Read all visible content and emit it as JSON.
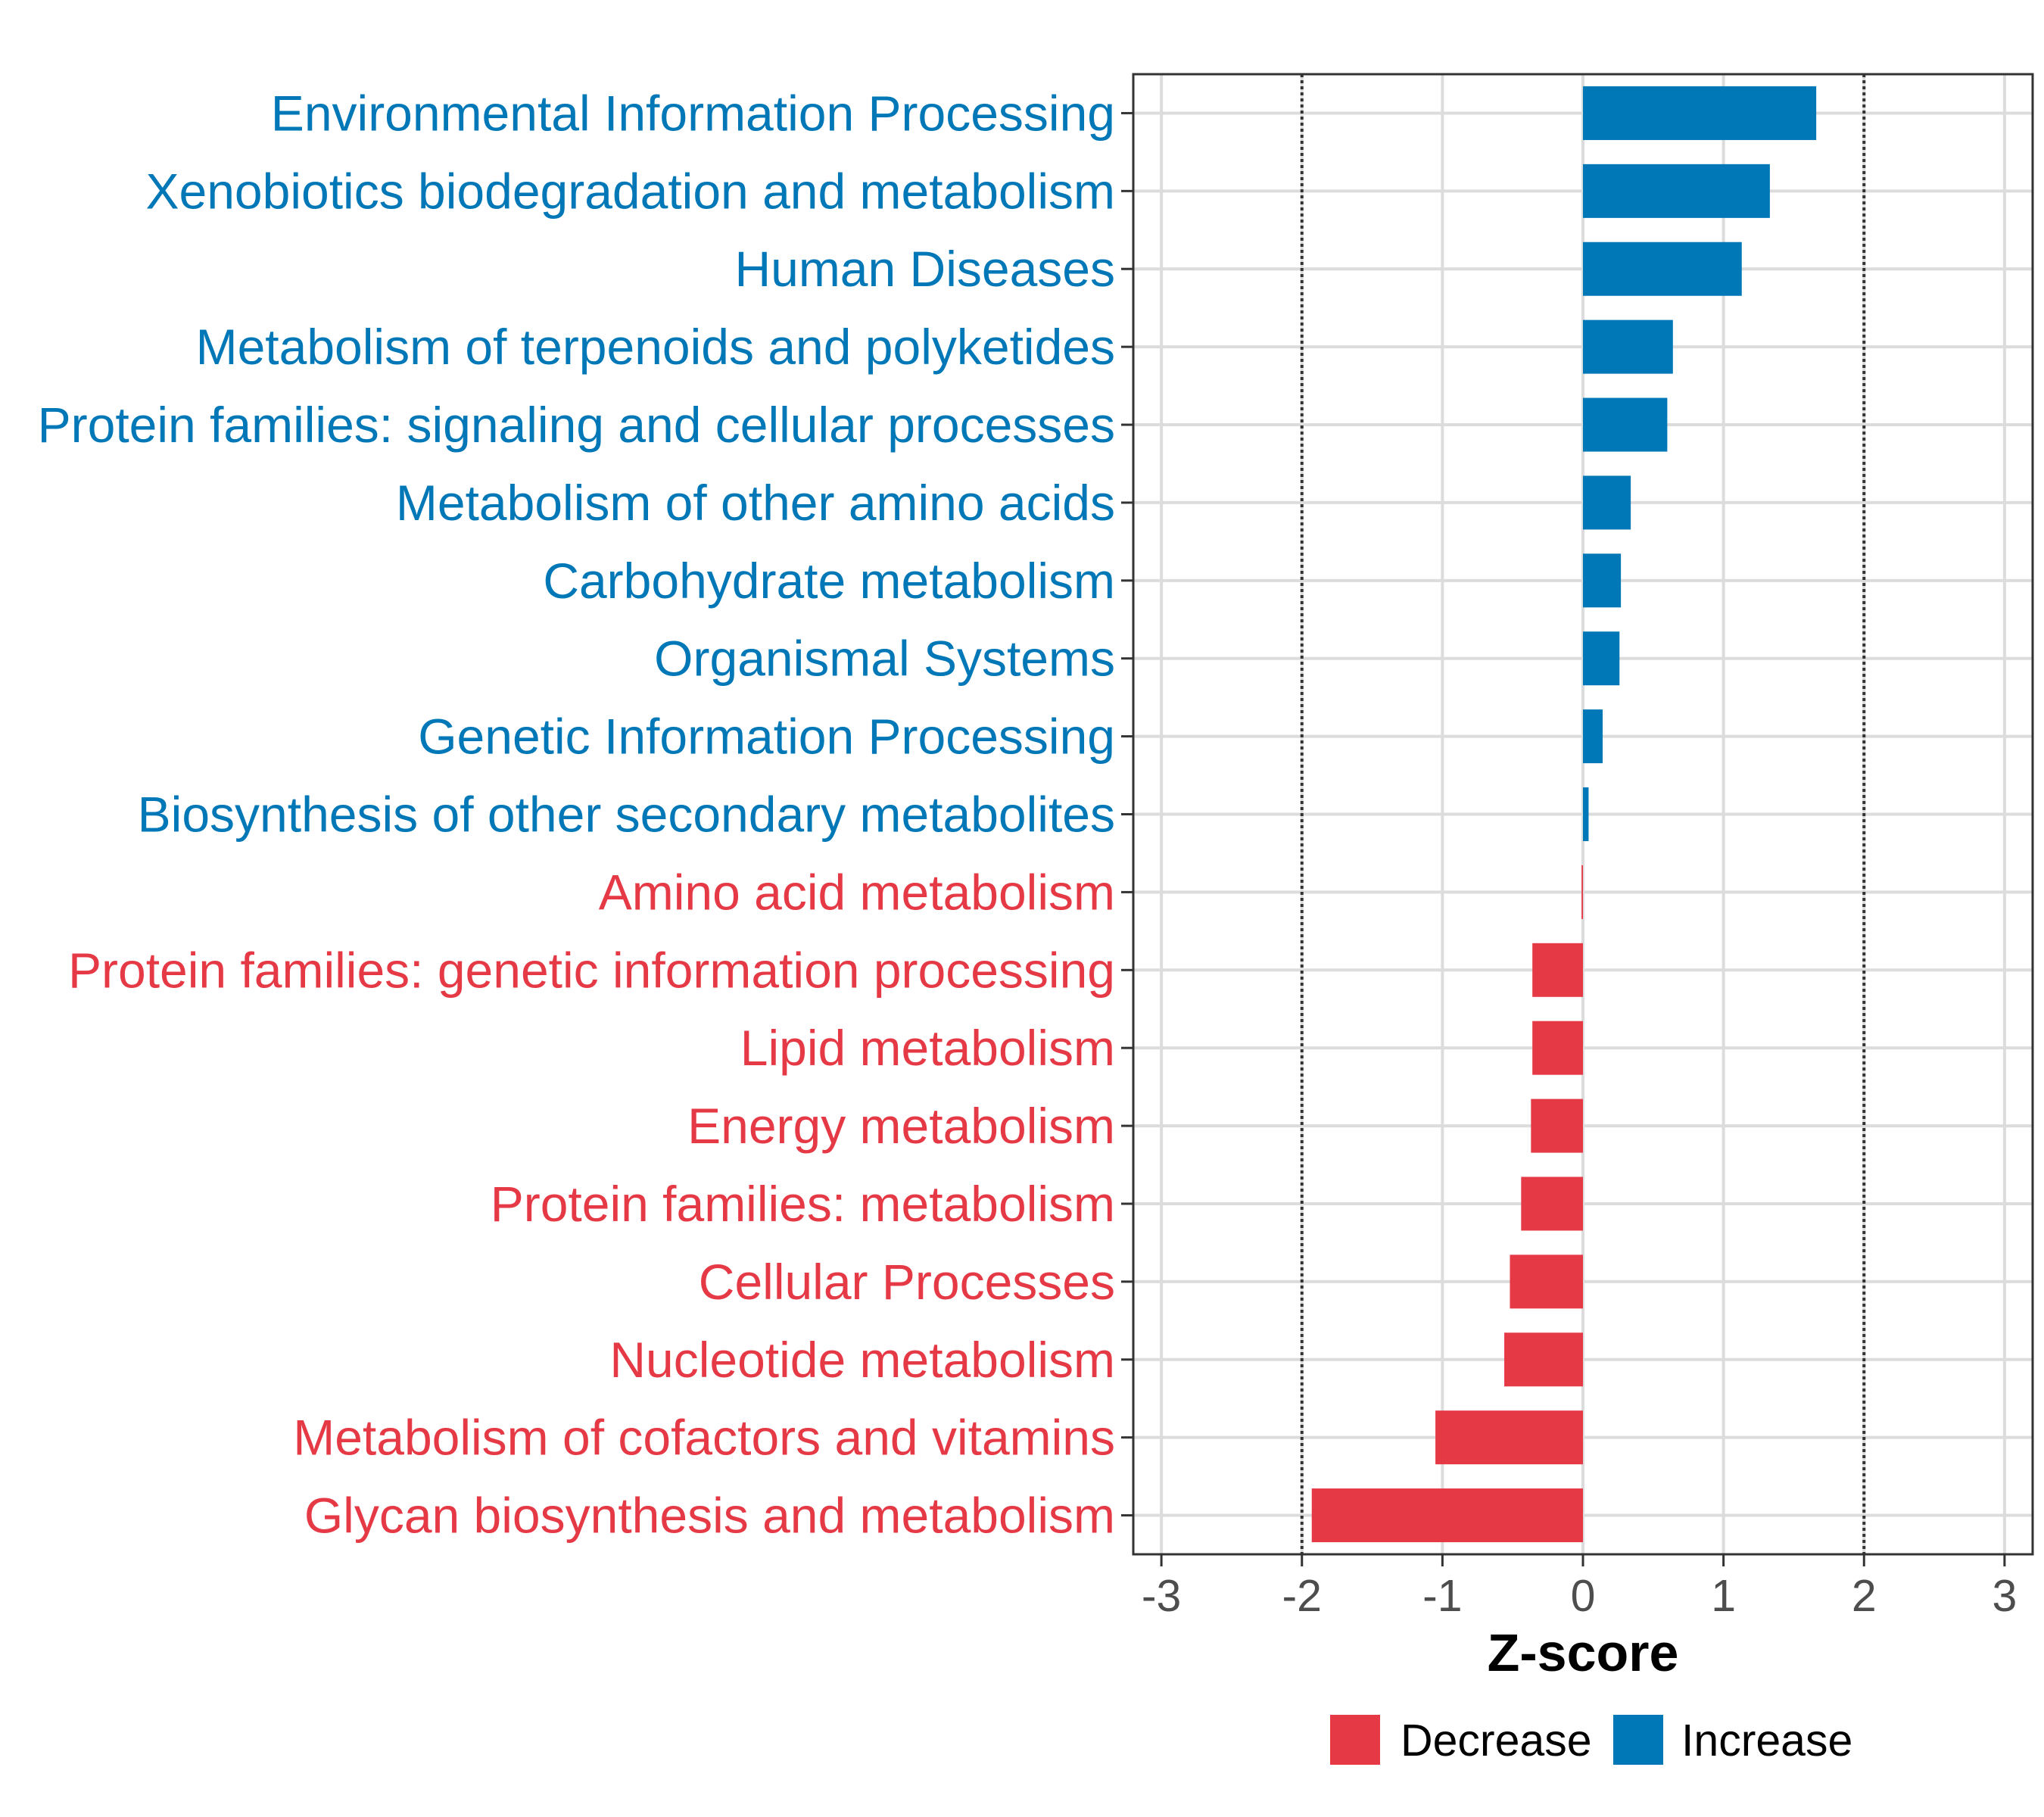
{
  "chart_data": {
    "type": "bar",
    "orientation": "horizontal",
    "title": "",
    "xlabel": "Z-score",
    "ylabel": "",
    "xlim": [
      -3.2,
      3.2
    ],
    "xticks": [
      -3,
      -2,
      -1,
      0,
      1,
      2,
      3
    ],
    "xtick_labels": [
      "-3",
      "-2",
      "-1",
      "0",
      "1",
      "2",
      "3"
    ],
    "reference_lines": [
      -2,
      2
    ],
    "grid": true,
    "legend_position": "bottom",
    "legend": [
      {
        "label": "Decrease",
        "color": "#E63946"
      },
      {
        "label": "Increase",
        "color": "#0077B6"
      }
    ],
    "categories": [
      "Environmental Information Processing",
      "Xenobiotics biodegradation and metabolism",
      "Human Diseases",
      "Metabolism of terpenoids and polyketides",
      "Protein families: signaling and cellular processes",
      "Metabolism of other amino acids",
      "Carbohydrate metabolism",
      "Organismal Systems",
      "Genetic Information Processing",
      "Biosynthesis of other secondary metabolites",
      "Amino acid metabolism",
      "Protein families: genetic information processing",
      "Lipid metabolism",
      "Energy metabolism",
      "Protein families: metabolism",
      "Cellular Processes",
      "Nucleotide metabolism",
      "Metabolism of cofactors and vitamins",
      "Glycan biosynthesis and metabolism"
    ],
    "values": [
      1.66,
      1.33,
      1.13,
      0.64,
      0.6,
      0.34,
      0.27,
      0.26,
      0.14,
      0.04,
      -0.01,
      -0.36,
      -0.36,
      -0.37,
      -0.44,
      -0.52,
      -0.56,
      -1.05,
      -1.93
    ],
    "groups": [
      "Increase",
      "Increase",
      "Increase",
      "Increase",
      "Increase",
      "Increase",
      "Increase",
      "Increase",
      "Increase",
      "Increase",
      "Decrease",
      "Decrease",
      "Decrease",
      "Decrease",
      "Decrease",
      "Decrease",
      "Decrease",
      "Decrease",
      "Decrease"
    ]
  }
}
